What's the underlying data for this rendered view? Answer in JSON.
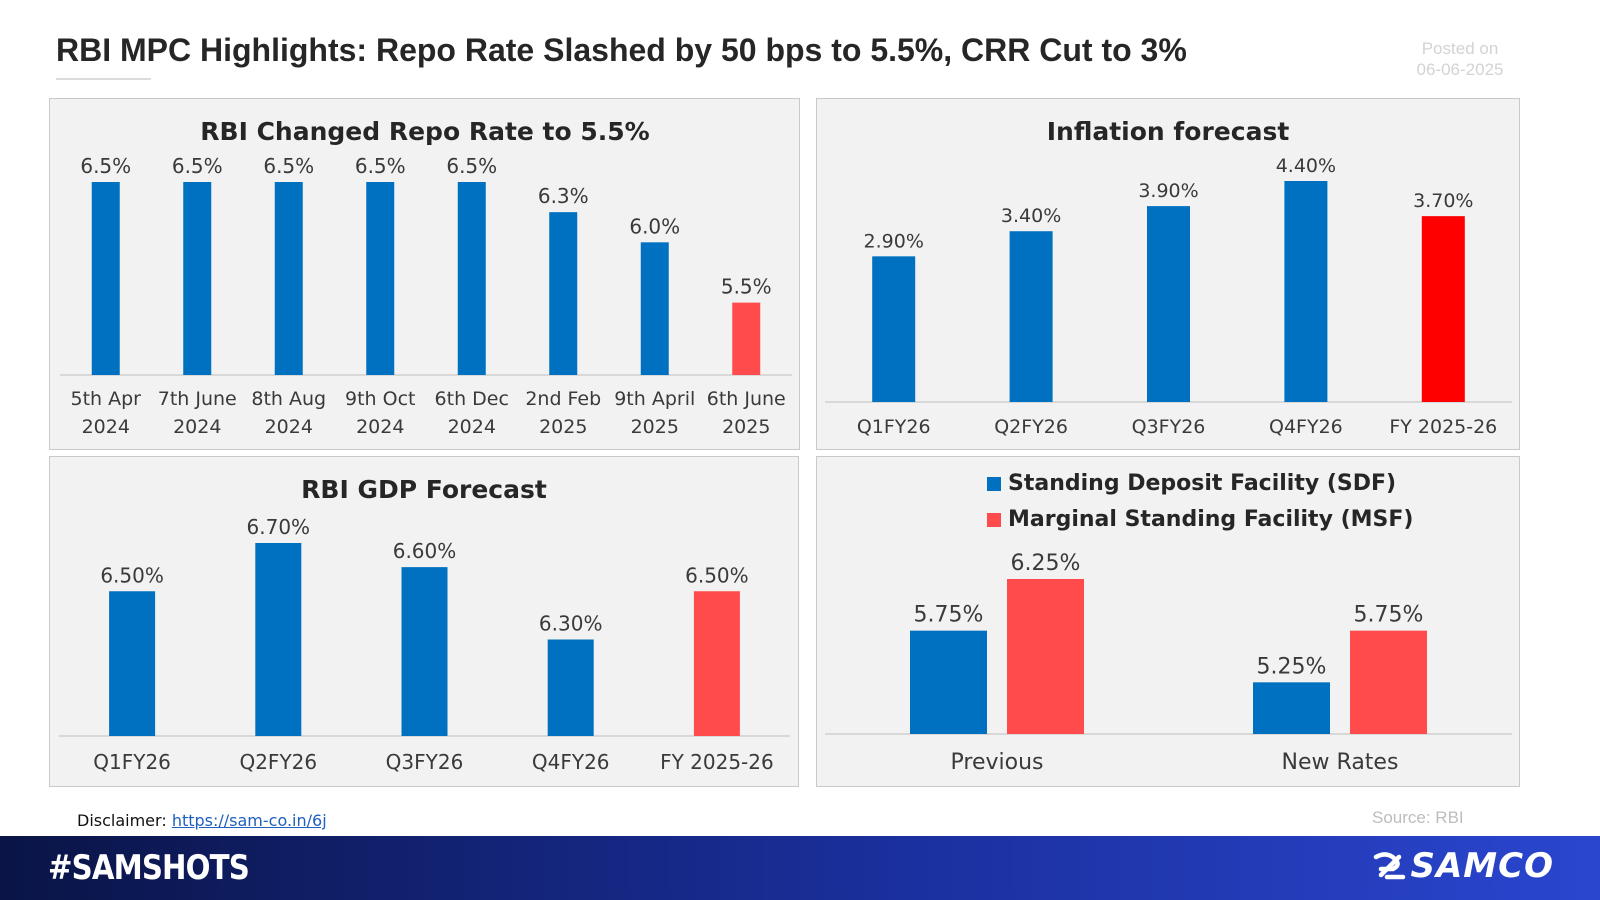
{
  "header": {
    "title": "RBI MPC Highlights: Repo Rate Slashed by 50 bps to 5.5%, CRR Cut to 3%",
    "posted_label": "Posted on",
    "posted_date": "06-06-2025"
  },
  "footer": {
    "disclaimer_label": "Disclaimer:",
    "disclaimer_link": "https://sam-co.in/6j",
    "source": "Source: RBI",
    "hashtag": "#SAMSHOTS",
    "brand": "SAMCO"
  },
  "colors": {
    "blue": "#0070c0",
    "red_soft": "#ff4b4b",
    "red": "#ff0000",
    "panel_bg": "#f2f2f2"
  },
  "chart_data": [
    {
      "id": "repo",
      "type": "bar",
      "title": "RBI Changed Repo Rate to 5.5%",
      "categories": [
        [
          "5th Apr",
          "2024"
        ],
        [
          "7th June",
          "2024"
        ],
        [
          "8th Aug",
          "2024"
        ],
        [
          "9th Oct",
          "2024"
        ],
        [
          "6th Dec",
          "2024"
        ],
        [
          "2nd Feb",
          "2025"
        ],
        [
          "9th April",
          "2025"
        ],
        [
          "6th June",
          "2025"
        ]
      ],
      "values": [
        6.5,
        6.5,
        6.5,
        6.5,
        6.5,
        6.25,
        6.0,
        5.5
      ],
      "labels": [
        "6.5%",
        "6.5%",
        "6.5%",
        "6.5%",
        "6.5%",
        "6.3%",
        "6.0%",
        "5.5%"
      ],
      "colors": [
        "blue",
        "blue",
        "blue",
        "blue",
        "blue",
        "blue",
        "blue",
        "red_soft"
      ],
      "ylim": [
        4.9,
        6.5
      ],
      "xlabel": "",
      "ylabel": ""
    },
    {
      "id": "inflation",
      "type": "bar",
      "title": "Inflation forecast",
      "categories": [
        [
          "Q1FY26"
        ],
        [
          "Q2FY26"
        ],
        [
          "Q3FY26"
        ],
        [
          "Q4FY26"
        ],
        [
          "FY 2025-26"
        ]
      ],
      "values": [
        2.9,
        3.4,
        3.9,
        4.4,
        3.7
      ],
      "labels": [
        "2.90%",
        "3.40%",
        "3.90%",
        "4.40%",
        "3.70%"
      ],
      "colors": [
        "blue",
        "blue",
        "blue",
        "blue",
        "red"
      ],
      "ylim": [
        0,
        4.4
      ],
      "xlabel": "",
      "ylabel": ""
    },
    {
      "id": "gdp",
      "type": "bar",
      "title": "RBI GDP Forecast",
      "categories": [
        [
          "Q1FY26"
        ],
        [
          "Q2FY26"
        ],
        [
          "Q3FY26"
        ],
        [
          "Q4FY26"
        ],
        [
          "FY 2025-26"
        ]
      ],
      "values": [
        6.5,
        6.7,
        6.6,
        6.3,
        6.5
      ],
      "labels": [
        "6.50%",
        "6.70%",
        "6.60%",
        "6.30%",
        "6.50%"
      ],
      "colors": [
        "blue",
        "blue",
        "blue",
        "blue",
        "red_soft"
      ],
      "ylim": [
        5.9,
        6.7
      ],
      "xlabel": "",
      "ylabel": ""
    },
    {
      "id": "facility",
      "type": "bar",
      "title": "",
      "categories": [
        "Previous",
        "New Rates"
      ],
      "series": [
        {
          "name": "Standing Deposit Facility (SDF)",
          "color": "blue",
          "values": [
            5.75,
            5.25
          ],
          "labels": [
            "5.75%",
            "5.25%"
          ]
        },
        {
          "name": "Marginal Standing Facility (MSF)",
          "color": "red_soft",
          "values": [
            6.25,
            5.75
          ],
          "labels": [
            "6.25%",
            "5.75%"
          ]
        }
      ],
      "ylim": [
        4.75,
        6.25
      ],
      "legend": "top-center",
      "xlabel": "",
      "ylabel": ""
    }
  ]
}
